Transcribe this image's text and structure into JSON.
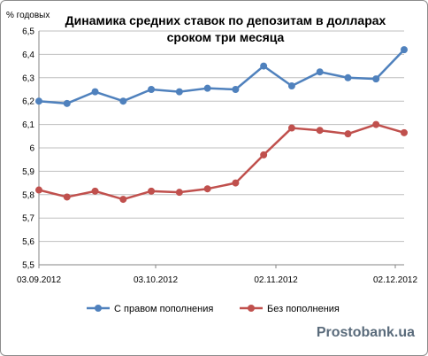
{
  "chart_data": {
    "type": "line",
    "title_lines": [
      "Динамика средних ставок по депозитам в долларах",
      "сроком три месяца"
    ],
    "ylabel": "% годовых",
    "xlabel": "",
    "ylim": [
      5.5,
      6.5
    ],
    "yticks": [
      "6,5",
      "6,4",
      "6,3",
      "6,2",
      "6,1",
      "6",
      "5,9",
      "5,8",
      "5,7",
      "5,6",
      "5,5"
    ],
    "x_tick_labels": [
      "03.09.2012",
      "03.10.2012",
      "02.11.2012",
      "02.12.2012"
    ],
    "grid": true,
    "legend_position": "bottom",
    "series": [
      {
        "name": "С правом пополнения",
        "color": "#4f81bd",
        "values": [
          6.2,
          6.19,
          6.24,
          6.2,
          6.25,
          6.24,
          6.255,
          6.25,
          6.35,
          6.265,
          6.325,
          6.3,
          6.295,
          6.42
        ]
      },
      {
        "name": "Без пополнения",
        "color": "#c0504d",
        "values": [
          5.82,
          5.79,
          5.815,
          5.78,
          5.815,
          5.81,
          5.825,
          5.85,
          5.97,
          6.085,
          6.075,
          6.06,
          6.1,
          6.065
        ]
      }
    ]
  },
  "watermark": "Prostobank.ua"
}
